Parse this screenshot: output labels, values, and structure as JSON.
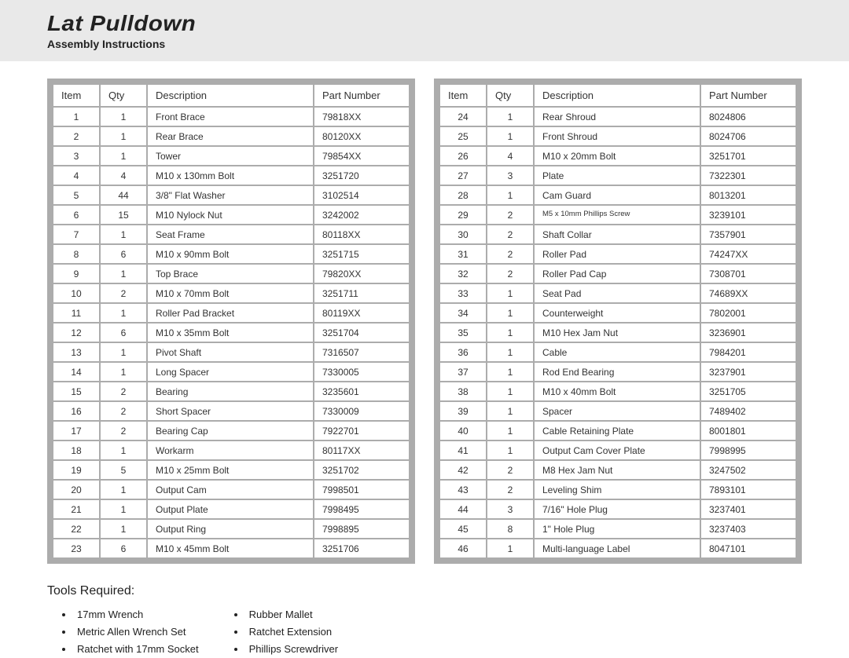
{
  "header": {
    "title": "Lat Pulldown",
    "subtitle": "Assembly Instructions"
  },
  "columns": {
    "item": "Item",
    "qty": "Qty",
    "desc": "Description",
    "part": "Part Number"
  },
  "table_left": [
    {
      "item": "1",
      "qty": "1",
      "desc": "Front Brace",
      "part": "79818XX"
    },
    {
      "item": "2",
      "qty": "1",
      "desc": "Rear Brace",
      "part": "80120XX"
    },
    {
      "item": "3",
      "qty": "1",
      "desc": "Tower",
      "part": "79854XX"
    },
    {
      "item": "4",
      "qty": "4",
      "desc": "M10 x 130mm Bolt",
      "part": "3251720"
    },
    {
      "item": "5",
      "qty": "44",
      "desc": "3/8\" Flat Washer",
      "part": "3102514"
    },
    {
      "item": "6",
      "qty": "15",
      "desc": "M10 Nylock Nut",
      "part": "3242002"
    },
    {
      "item": "7",
      "qty": "1",
      "desc": "Seat Frame",
      "part": "80118XX"
    },
    {
      "item": "8",
      "qty": "6",
      "desc": "M10 x 90mm Bolt",
      "part": "3251715"
    },
    {
      "item": "9",
      "qty": "1",
      "desc": "Top Brace",
      "part": "79820XX"
    },
    {
      "item": "10",
      "qty": "2",
      "desc": "M10 x 70mm Bolt",
      "part": "3251711"
    },
    {
      "item": "11",
      "qty": "1",
      "desc": "Roller Pad Bracket",
      "part": "80119XX"
    },
    {
      "item": "12",
      "qty": "6",
      "desc": "M10 x 35mm Bolt",
      "part": "3251704"
    },
    {
      "item": "13",
      "qty": "1",
      "desc": "Pivot Shaft",
      "part": "7316507"
    },
    {
      "item": "14",
      "qty": "1",
      "desc": "Long Spacer",
      "part": "7330005"
    },
    {
      "item": "15",
      "qty": "2",
      "desc": "Bearing",
      "part": "3235601"
    },
    {
      "item": "16",
      "qty": "2",
      "desc": "Short Spacer",
      "part": "7330009"
    },
    {
      "item": "17",
      "qty": "2",
      "desc": "Bearing Cap",
      "part": "7922701"
    },
    {
      "item": "18",
      "qty": "1",
      "desc": "Workarm",
      "part": "80117XX"
    },
    {
      "item": "19",
      "qty": "5",
      "desc": "M10 x 25mm Bolt",
      "part": "3251702"
    },
    {
      "item": "20",
      "qty": "1",
      "desc": "Output Cam",
      "part": "7998501"
    },
    {
      "item": "21",
      "qty": "1",
      "desc": "Output Plate",
      "part": "7998495"
    },
    {
      "item": "22",
      "qty": "1",
      "desc": "Output Ring",
      "part": "7998895"
    },
    {
      "item": "23",
      "qty": "6",
      "desc": "M10 x 45mm Bolt",
      "part": "3251706"
    }
  ],
  "table_right": [
    {
      "item": "24",
      "qty": "1",
      "desc": "Rear Shroud",
      "part": "8024806"
    },
    {
      "item": "25",
      "qty": "1",
      "desc": "Front Shroud",
      "part": "8024706"
    },
    {
      "item": "26",
      "qty": "4",
      "desc": "M10 x 20mm Bolt",
      "part": "3251701"
    },
    {
      "item": "27",
      "qty": "3",
      "desc": "Plate",
      "part": "7322301"
    },
    {
      "item": "28",
      "qty": "1",
      "desc": "Cam Guard",
      "part": "8013201"
    },
    {
      "item": "29",
      "qty": "2",
      "desc": "M5 x 10mm Phillips Screw",
      "part": "3239101",
      "small": true
    },
    {
      "item": "30",
      "qty": "2",
      "desc": "Shaft Collar",
      "part": "7357901"
    },
    {
      "item": "31",
      "qty": "2",
      "desc": "Roller Pad",
      "part": "74247XX"
    },
    {
      "item": "32",
      "qty": "2",
      "desc": "Roller Pad Cap",
      "part": "7308701"
    },
    {
      "item": "33",
      "qty": "1",
      "desc": "Seat Pad",
      "part": "74689XX"
    },
    {
      "item": "34",
      "qty": "1",
      "desc": "Counterweight",
      "part": "7802001"
    },
    {
      "item": "35",
      "qty": "1",
      "desc": "M10 Hex Jam Nut",
      "part": "3236901"
    },
    {
      "item": "36",
      "qty": "1",
      "desc": "Cable",
      "part": "7984201"
    },
    {
      "item": "37",
      "qty": "1",
      "desc": "Rod End Bearing",
      "part": "3237901"
    },
    {
      "item": "38",
      "qty": "1",
      "desc": "M10 x 40mm Bolt",
      "part": "3251705"
    },
    {
      "item": "39",
      "qty": "1",
      "desc": "Spacer",
      "part": "7489402"
    },
    {
      "item": "40",
      "qty": "1",
      "desc": "Cable Retaining Plate",
      "part": "8001801"
    },
    {
      "item": "41",
      "qty": "1",
      "desc": "Output Cam Cover Plate",
      "part": "7998995"
    },
    {
      "item": "42",
      "qty": "2",
      "desc": "M8 Hex Jam Nut",
      "part": "3247502"
    },
    {
      "item": "43",
      "qty": "2",
      "desc": "Leveling Shim",
      "part": "7893101"
    },
    {
      "item": "44",
      "qty": "3",
      "desc": "7/16\" Hole Plug",
      "part": "3237401"
    },
    {
      "item": "45",
      "qty": "8",
      "desc": "1\" Hole Plug",
      "part": "3237403"
    },
    {
      "item": "46",
      "qty": "1",
      "desc": "Multi-language Label",
      "part": "8047101"
    }
  ],
  "tools": {
    "title": "Tools Required:",
    "col1": [
      "17mm Wrench",
      "Metric Allen Wrench Set",
      "Ratchet with 17mm Socket"
    ],
    "col2": [
      "Rubber Mallet",
      "Ratchet Extension",
      "Phillips Screwdriver"
    ]
  }
}
